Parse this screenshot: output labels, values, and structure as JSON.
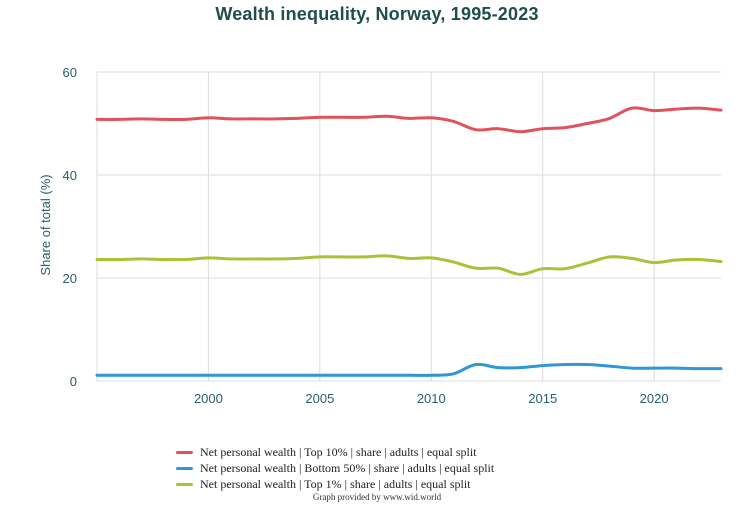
{
  "chart_data": {
    "type": "line",
    "title": "Wealth inequality, Norway, 1995-2023",
    "xlabel": "",
    "ylabel": "Share of total (%)",
    "xlim": [
      1995,
      2023
    ],
    "ylim": [
      0,
      60
    ],
    "x_ticks": [
      2000,
      2005,
      2010,
      2015,
      2020
    ],
    "y_ticks": [
      0,
      20,
      40,
      60
    ],
    "grid": true,
    "legend_position": "bottom",
    "x": [
      1995,
      1996,
      1997,
      1998,
      1999,
      2000,
      2001,
      2002,
      2003,
      2004,
      2005,
      2006,
      2007,
      2008,
      2009,
      2010,
      2011,
      2012,
      2013,
      2014,
      2015,
      2016,
      2017,
      2018,
      2019,
      2020,
      2021,
      2022,
      2023
    ],
    "series": [
      {
        "name": "Net personal wealth | Top 10% | share | adults | equal split",
        "color": "#e0525c",
        "values": [
          50.8,
          50.8,
          50.9,
          50.8,
          50.8,
          51.1,
          50.9,
          50.9,
          50.9,
          51.0,
          51.2,
          51.2,
          51.2,
          51.4,
          51.0,
          51.1,
          50.4,
          48.8,
          49.0,
          48.4,
          49.0,
          49.2,
          50.0,
          51.0,
          53.0,
          52.5,
          52.8,
          53.0,
          52.6
        ]
      },
      {
        "name": "Net personal wealth | Bottom 50% | share | adults | equal split",
        "color": "#2f96d8",
        "values": [
          1.1,
          1.1,
          1.1,
          1.1,
          1.1,
          1.1,
          1.1,
          1.1,
          1.1,
          1.1,
          1.1,
          1.1,
          1.1,
          1.1,
          1.1,
          1.1,
          1.4,
          3.2,
          2.6,
          2.6,
          3.0,
          3.2,
          3.2,
          2.9,
          2.5,
          2.5,
          2.5,
          2.4,
          2.4
        ]
      },
      {
        "name": "Net personal wealth | Top 1% | share | adults | equal split",
        "color": "#a9c23a",
        "values": [
          23.6,
          23.6,
          23.7,
          23.6,
          23.6,
          23.9,
          23.7,
          23.7,
          23.7,
          23.8,
          24.1,
          24.1,
          24.1,
          24.3,
          23.8,
          23.9,
          23.1,
          21.9,
          21.9,
          20.7,
          21.8,
          21.8,
          22.9,
          24.1,
          23.8,
          23.0,
          23.5,
          23.6,
          23.2
        ]
      }
    ],
    "credit": "Graph provided by www.wid.world"
  }
}
